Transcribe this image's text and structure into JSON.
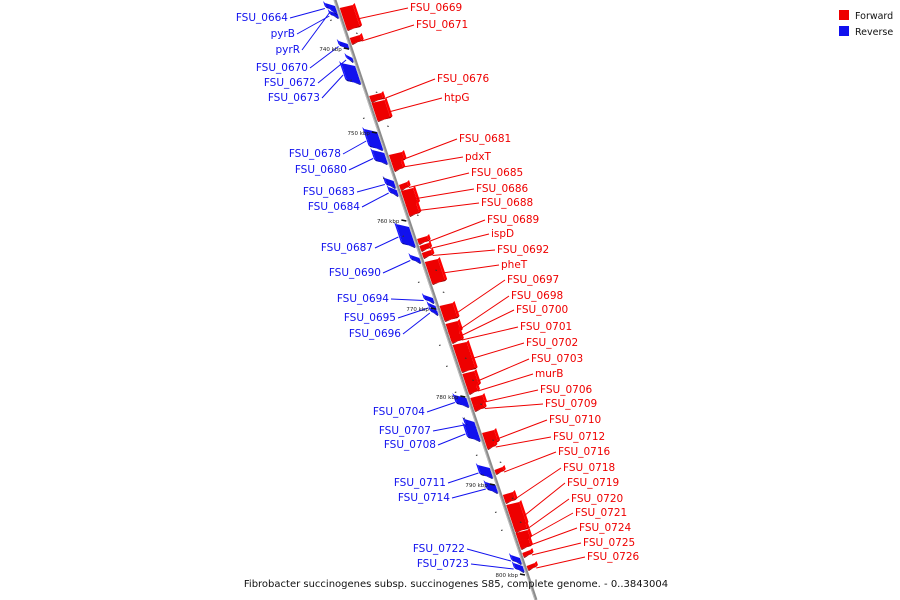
{
  "colors": {
    "forward": "#ee0000",
    "reverse": "#1111ee",
    "backbone": "#8c8c8c"
  },
  "legend": [
    {
      "label": "Forward",
      "color": "#ee0000"
    },
    {
      "label": "Reverse",
      "color": "#1111ee"
    }
  ],
  "caption": "Fibrobacter succinogenes subsp. succinogenes S85, complete genome. - 0..3843004",
  "ticks": [
    "740 kbp",
    "750 kbp",
    "760 kbp",
    "770 kbp",
    "780 kbp",
    "790 kbp",
    "800 kbp"
  ],
  "reverse_genes": [
    "FSU_0664",
    "pyrB",
    "pyrR",
    "FSU_0670",
    "FSU_0672",
    "FSU_0673",
    "FSU_0678",
    "FSU_0680",
    "FSU_0683",
    "FSU_0684",
    "FSU_0687",
    "FSU_0690",
    "FSU_0694",
    "FSU_0695",
    "FSU_0696",
    "FSU_0704",
    "FSU_0707",
    "FSU_0708",
    "FSU_0711",
    "FSU_0714",
    "FSU_0722",
    "FSU_0723"
  ],
  "forward_genes": [
    "FSU_0669",
    "FSU_0671",
    "FSU_0676",
    "htpG",
    "FSU_0681",
    "pdxT",
    "FSU_0685",
    "FSU_0686",
    "FSU_0688",
    "FSU_0689",
    "ispD",
    "FSU_0692",
    "pheT",
    "FSU_0697",
    "FSU_0698",
    "FSU_0700",
    "FSU_0701",
    "FSU_0702",
    "FSU_0703",
    "murB",
    "FSU_0706",
    "FSU_0709",
    "FSU_0710",
    "FSU_0712",
    "FSU_0716",
    "FSU_0718",
    "FSU_0719",
    "FSU_0720",
    "FSU_0721",
    "FSU_0724",
    "FSU_0725",
    "FSU_0726"
  ]
}
